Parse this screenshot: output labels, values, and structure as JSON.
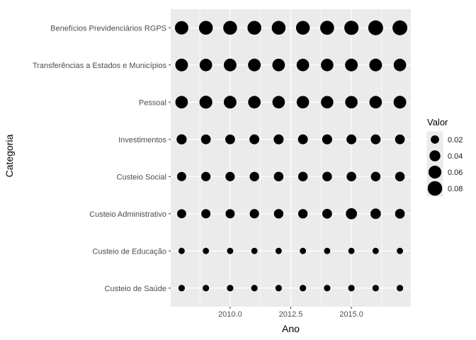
{
  "chart_data": {
    "type": "scatter",
    "xlabel": "Ano",
    "ylabel": "Categoria",
    "xlim": [
      2007.55,
      2017.45
    ],
    "x_ticks": [
      2010.0,
      2012.5,
      2015.0
    ],
    "x_tick_labels": [
      "2010.0",
      "2012.5",
      "2015.0"
    ],
    "years": [
      2008,
      2009,
      2010,
      2011,
      2012,
      2013,
      2014,
      2015,
      2016,
      2017
    ],
    "categories": [
      "Custeio de Saúde",
      "Custeio de Educação",
      "Custeio Administrativo",
      "Custeio Social",
      "Investimentos",
      "Pessoal",
      "Transferências a Estados e Municípios",
      "Benefícios Previdenciários RGPS"
    ],
    "values": [
      [
        0.01,
        0.01,
        0.01,
        0.01,
        0.01,
        0.01,
        0.01,
        0.01,
        0.01,
        0.01
      ],
      [
        0.009,
        0.009,
        0.009,
        0.009,
        0.009,
        0.009,
        0.009,
        0.009,
        0.009,
        0.009
      ],
      [
        0.025,
        0.026,
        0.026,
        0.027,
        0.028,
        0.028,
        0.03,
        0.042,
        0.036,
        0.03
      ],
      [
        0.026,
        0.027,
        0.027,
        0.028,
        0.029,
        0.029,
        0.029,
        0.029,
        0.029,
        0.029
      ],
      [
        0.033,
        0.03,
        0.03,
        0.031,
        0.032,
        0.031,
        0.032,
        0.031,
        0.031,
        0.03
      ],
      [
        0.056,
        0.06,
        0.058,
        0.056,
        0.056,
        0.055,
        0.055,
        0.055,
        0.056,
        0.058
      ],
      [
        0.058,
        0.056,
        0.058,
        0.058,
        0.057,
        0.056,
        0.056,
        0.058,
        0.058,
        0.056
      ],
      [
        0.066,
        0.071,
        0.071,
        0.071,
        0.071,
        0.07,
        0.072,
        0.076,
        0.084,
        0.084
      ]
    ],
    "legend": {
      "title": "Valor",
      "placement": "right",
      "breaks": [
        0.02,
        0.04,
        0.06,
        0.08
      ],
      "labels": [
        "0.02",
        "0.04",
        "0.06",
        "0.08"
      ]
    },
    "grid": true,
    "colors": {
      "panel": "#ebebeb",
      "grid_major": "#ffffff",
      "point": "#000000"
    }
  }
}
